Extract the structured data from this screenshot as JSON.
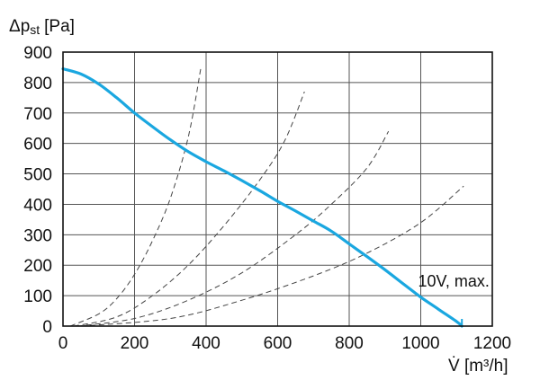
{
  "chart_data": {
    "type": "line",
    "title": "",
    "ylabel": "Δp",
    "ylabel_subscript": "st",
    "ylabel_unit": "[Pa]",
    "xlabel": "V̇ [m³/h]",
    "xlim": [
      0,
      1200
    ],
    "ylim": [
      0,
      900
    ],
    "grid": true,
    "x_ticks": [
      0,
      200,
      400,
      600,
      800,
      1000,
      1200
    ],
    "y_ticks": [
      0,
      100,
      200,
      300,
      400,
      500,
      600,
      700,
      800,
      900
    ],
    "annotations": [
      {
        "text": "10V, max.",
        "x": 1000,
        "y": 165
      }
    ],
    "series": [
      {
        "style": "solid",
        "color": "#1aa7e0",
        "points": [
          [
            0,
            845
          ],
          [
            50,
            828
          ],
          [
            100,
            795
          ],
          [
            150,
            750
          ],
          [
            200,
            700
          ],
          [
            250,
            655
          ],
          [
            300,
            612
          ],
          [
            350,
            573
          ],
          [
            400,
            540
          ],
          [
            450,
            510
          ],
          [
            500,
            478
          ],
          [
            550,
            445
          ],
          [
            600,
            410
          ],
          [
            650,
            378
          ],
          [
            700,
            345
          ],
          [
            750,
            312
          ],
          [
            800,
            270
          ],
          [
            850,
            228
          ],
          [
            900,
            185
          ],
          [
            950,
            140
          ],
          [
            1000,
            95
          ],
          [
            1050,
            55
          ],
          [
            1100,
            15
          ],
          [
            1115,
            0
          ]
        ]
      },
      {
        "style": "dashed",
        "color": "#444444",
        "points": [
          [
            20,
            0
          ],
          [
            100,
            40
          ],
          [
            150,
            90
          ],
          [
            200,
            170
          ],
          [
            250,
            280
          ],
          [
            300,
            420
          ],
          [
            350,
            620
          ],
          [
            385,
            845
          ]
        ]
      },
      {
        "style": "dashed",
        "color": "#444444",
        "points": [
          [
            30,
            0
          ],
          [
            150,
            30
          ],
          [
            250,
            100
          ],
          [
            350,
            200
          ],
          [
            450,
            330
          ],
          [
            550,
            480
          ],
          [
            620,
            610
          ],
          [
            675,
            770
          ]
        ]
      },
      {
        "style": "dashed",
        "color": "#444444",
        "points": [
          [
            40,
            0
          ],
          [
            200,
            25
          ],
          [
            350,
            85
          ],
          [
            500,
            175
          ],
          [
            650,
            300
          ],
          [
            750,
            400
          ],
          [
            850,
            520
          ],
          [
            910,
            640
          ]
        ]
      },
      {
        "style": "dashed",
        "color": "#444444",
        "points": [
          [
            50,
            0
          ],
          [
            300,
            25
          ],
          [
            500,
            85
          ],
          [
            700,
            165
          ],
          [
            850,
            240
          ],
          [
            1000,
            340
          ],
          [
            1120,
            460
          ]
        ]
      }
    ]
  }
}
